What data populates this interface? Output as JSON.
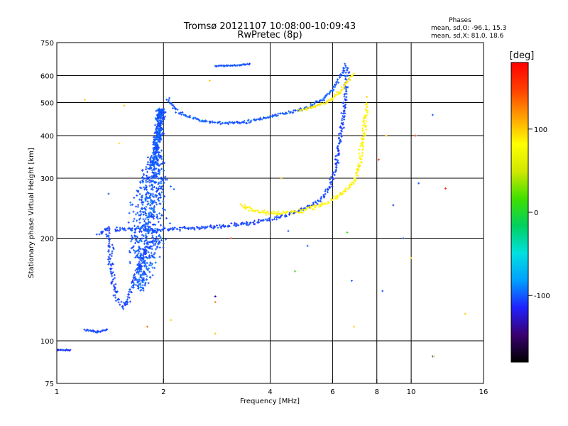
{
  "chart_data": {
    "type": "scatter",
    "title": "Tromsø 20121107 10:08:00-10:09:43",
    "subtitle": "RwPretec (8p)",
    "xlabel": "Frequency [MHz]",
    "ylabel": "Stationary phase Virtual Height [km]",
    "x_scale": "log2",
    "y_scale": "log",
    "xlim": [
      1,
      16
    ],
    "ylim": [
      75,
      750
    ],
    "x_ticks": [
      1,
      2,
      4,
      6,
      8,
      10,
      16
    ],
    "x_tick_labels": [
      "1",
      "2",
      "4",
      "6",
      "8",
      "10",
      "16"
    ],
    "y_ticks": [
      75,
      100,
      200,
      300,
      400,
      500,
      600,
      750
    ],
    "y_tick_labels": [
      "75",
      "100",
      "200",
      "300",
      "400",
      "500",
      "600",
      "750"
    ],
    "x_grid": [
      2,
      4,
      6,
      8,
      10
    ],
    "y_grid": [
      100,
      200,
      300,
      400,
      500,
      600
    ],
    "stats": {
      "heading": "Phases",
      "line_o": "mean, sd,O: -96.1, 15.3",
      "line_x": "mean, sd,X:  81.0, 18.6"
    },
    "colorbar": {
      "label": "[deg]",
      "range": [
        -180,
        180
      ],
      "ticks": [
        100,
        0,
        -100
      ],
      "tick_labels": [
        "100",
        "0",
        "-100"
      ],
      "stops": [
        "#000000",
        "#3a0070",
        "#2020ff",
        "#00a0ff",
        "#00e0e0",
        "#00d060",
        "#40e000",
        "#d0e800",
        "#ffff00",
        "#ffa000",
        "#ff4000",
        "#ff0000"
      ]
    },
    "clusters": [
      {
        "name": "O-mode F layer trace",
        "kind": "path",
        "color_phase": -105,
        "spread": 1.02,
        "points": [
          [
            1.45,
            212
          ],
          [
            1.8,
            212
          ],
          [
            2.0,
            212
          ],
          [
            2.4,
            214
          ],
          [
            3.0,
            217
          ],
          [
            3.6,
            222
          ],
          [
            4.2,
            230
          ],
          [
            4.8,
            240
          ],
          [
            5.3,
            252
          ],
          [
            5.7,
            268
          ],
          [
            5.95,
            290
          ],
          [
            6.15,
            330
          ],
          [
            6.3,
            390
          ],
          [
            6.45,
            460
          ],
          [
            6.55,
            560
          ],
          [
            6.6,
            640
          ]
        ]
      },
      {
        "name": "O-mode upper branch",
        "kind": "path",
        "color_phase": -100,
        "spread": 1.015,
        "points": [
          [
            2.05,
            510
          ],
          [
            2.2,
            470
          ],
          [
            2.5,
            445
          ],
          [
            2.9,
            435
          ],
          [
            3.4,
            438
          ],
          [
            4.0,
            455
          ],
          [
            4.6,
            470
          ],
          [
            5.1,
            485
          ],
          [
            5.6,
            510
          ],
          [
            6.0,
            545
          ],
          [
            6.3,
            595
          ],
          [
            6.5,
            640
          ]
        ]
      },
      {
        "name": "X-mode F layer trace",
        "kind": "path",
        "color_phase": 85,
        "spread": 1.02,
        "points": [
          [
            3.3,
            250
          ],
          [
            3.7,
            240
          ],
          [
            4.2,
            236
          ],
          [
            4.8,
            240
          ],
          [
            5.4,
            248
          ],
          [
            6.0,
            258
          ],
          [
            6.5,
            275
          ],
          [
            6.9,
            295
          ],
          [
            7.15,
            330
          ],
          [
            7.3,
            380
          ],
          [
            7.4,
            440
          ],
          [
            7.5,
            500
          ]
        ]
      },
      {
        "name": "X-mode upper branch",
        "kind": "path",
        "color_phase": 90,
        "spread": 1.015,
        "points": [
          [
            4.8,
            475
          ],
          [
            5.3,
            485
          ],
          [
            5.8,
            500
          ],
          [
            6.2,
            530
          ],
          [
            6.6,
            575
          ],
          [
            6.9,
            610
          ]
        ]
      },
      {
        "name": "spread F cloud",
        "kind": "cloud",
        "color_phase": -100,
        "count": 950,
        "x": [
          1.55,
          2.2
        ],
        "y": [
          140,
          480
        ]
      },
      {
        "name": "lower echoes",
        "kind": "path",
        "color_phase": -105,
        "spread": 1.03,
        "points": [
          [
            1.3,
            205
          ],
          [
            1.4,
            215
          ],
          [
            1.45,
            140
          ],
          [
            1.55,
            125
          ],
          [
            1.65,
            150
          ],
          [
            1.75,
            180
          ],
          [
            1.85,
            200
          ]
        ]
      },
      {
        "name": "E region echoes",
        "kind": "path",
        "color_phase": -105,
        "spread": 1.01,
        "points": [
          [
            1.2,
            108
          ],
          [
            1.3,
            106
          ],
          [
            1.4,
            108
          ]
        ]
      },
      {
        "name": "lowest echoes",
        "kind": "path",
        "color_phase": -110,
        "spread": 1.005,
        "points": [
          [
            1.0,
            94
          ],
          [
            1.05,
            94
          ],
          [
            1.1,
            94
          ]
        ]
      },
      {
        "name": "top echoes",
        "kind": "path",
        "color_phase": -100,
        "spread": 1.005,
        "points": [
          [
            2.8,
            640
          ],
          [
            3.0,
            642
          ],
          [
            3.2,
            643
          ],
          [
            3.5,
            648
          ]
        ]
      }
    ],
    "scatter_points": [
      [
        1.2,
        510,
        100
      ],
      [
        1.55,
        490,
        100
      ],
      [
        1.5,
        380,
        95
      ],
      [
        1.4,
        270,
        -100
      ],
      [
        2.7,
        580,
        100
      ],
      [
        3.1,
        200,
        150
      ],
      [
        3.5,
        650,
        -120
      ],
      [
        4.3,
        300,
        110
      ],
      [
        4.5,
        210,
        -100
      ],
      [
        4.7,
        160,
        10
      ],
      [
        5.1,
        190,
        -100
      ],
      [
        6.6,
        208,
        10
      ],
      [
        6.9,
        110,
        100
      ],
      [
        7.5,
        520,
        100
      ],
      [
        8.1,
        340,
        150
      ],
      [
        8.5,
        400,
        100
      ],
      [
        8.9,
        250,
        -110
      ],
      [
        8.3,
        140,
        -100
      ],
      [
        9.5,
        200,
        -100
      ],
      [
        10.0,
        175,
        95
      ],
      [
        10.3,
        400,
        140
      ],
      [
        10.5,
        290,
        -100
      ],
      [
        11.5,
        460,
        -100
      ],
      [
        12.5,
        280,
        160
      ],
      [
        14.2,
        120,
        100
      ],
      [
        11.5,
        90,
        -100
      ],
      [
        11.6,
        90,
        100
      ],
      [
        2.8,
        135,
        -140
      ],
      [
        2.8,
        130,
        130
      ],
      [
        2.8,
        105,
        100
      ],
      [
        6.8,
        150,
        -100
      ],
      [
        2.1,
        115,
        100
      ],
      [
        6.5,
        650,
        -100
      ],
      [
        1.8,
        110,
        130
      ]
    ]
  }
}
